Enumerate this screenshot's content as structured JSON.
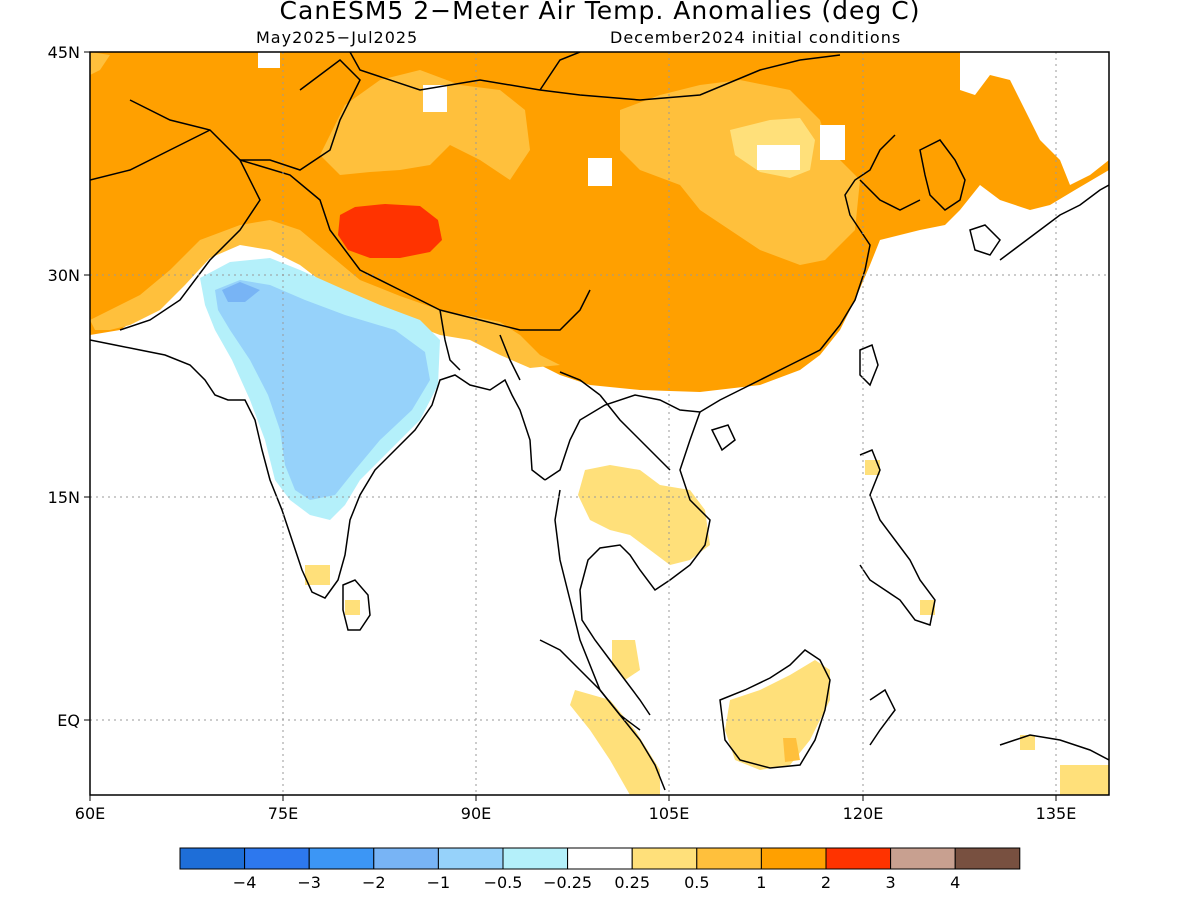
{
  "header": {
    "title": "CanESM5 2−Meter Air Temp. Anomalies (deg C)",
    "period": "May2025−Jul2025",
    "init": "December2024 initial conditions"
  },
  "map": {
    "lon_range": [
      60,
      140
    ],
    "lat_range": [
      -5,
      45
    ],
    "x_ticks": [
      "60E",
      "75E",
      "90E",
      "105E",
      "120E",
      "135E"
    ],
    "y_ticks": [
      "45N",
      "30N",
      "15N",
      "EQ"
    ],
    "grid": "dotted",
    "land_outline_color": "#000000",
    "anomaly_regions": [
      {
        "category": "1 to 2",
        "color": "#ffa000",
        "area": "northern India, Pakistan, Tibetan Plateau, Mongolia and China north of 22N"
      },
      {
        "category": "0.5 to 1",
        "color": "#ffc03c",
        "area": "central Tibet and Mongolia"
      },
      {
        "category": "0.25 to 0.5",
        "color": "#ffe07a",
        "area": "Indochina, Borneo, Sumatra, southern Sri Lanka"
      },
      {
        "category": "2 to 3",
        "color": "#ff3300",
        "area": "western Tibet near 33N 83E"
      },
      {
        "category": "-0.5 to -0.25",
        "color": "#b4f0fa",
        "area": "margin of Indian peninsula"
      },
      {
        "category": "-1 to -0.5",
        "color": "#96d2fa",
        "area": "central India"
      }
    ]
  },
  "colorbar": {
    "colors": [
      "#1e6ed8",
      "#2d78ee",
      "#3c96f5",
      "#78b4f5",
      "#96d2fa",
      "#b4f0fa",
      "#ffffff",
      "#ffe07a",
      "#ffc03c",
      "#ffa000",
      "#ff3300",
      "#c8a090",
      "#785040"
    ],
    "labels": [
      "−4",
      "−3",
      "−2",
      "−1",
      "−0.5",
      "−0.25",
      "0.25",
      "0.5",
      "1",
      "2",
      "3",
      "4"
    ]
  }
}
